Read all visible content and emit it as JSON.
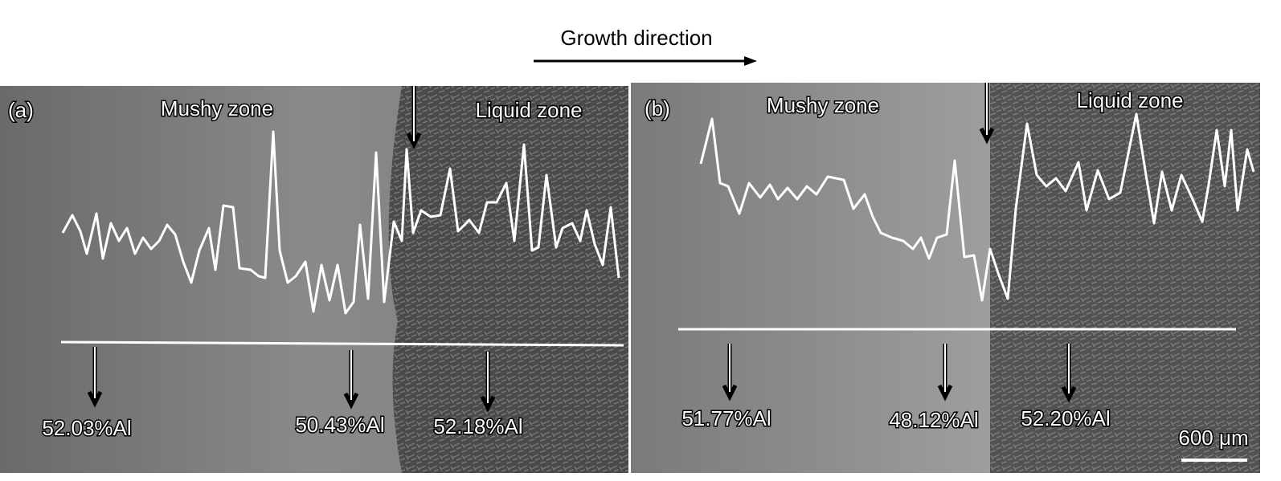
{
  "header": {
    "title": "Growth direction"
  },
  "panels": [
    {
      "label": "(a)",
      "zones": [
        "Mushy zone",
        "Liquid zone"
      ],
      "annotations": [
        "52.03%Al",
        "50.43%Al",
        "52.18%Al"
      ]
    },
    {
      "label": "(b)",
      "zones": [
        "Mushy zone",
        "Liquid zone"
      ],
      "annotations": [
        "51.77%Al",
        "48.12%Al",
        "52.20%Al"
      ],
      "scale_bar": "600 μm"
    }
  ]
}
